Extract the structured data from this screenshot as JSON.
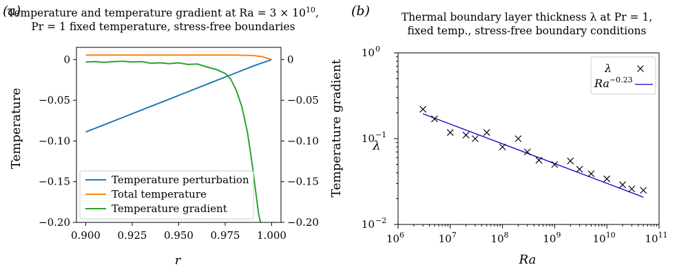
{
  "chart_data": [
    {
      "panel_label": "(a)",
      "type": "line",
      "title_line1": "Temperature and temperature gradient at Ra = 3 × 10",
      "title_line1_sup": "10",
      "title_line1_end": ",",
      "title_line2": "Pr = 1 fixed temperature, stress-free boundaries",
      "xlabel": "r",
      "ylabel": "Temperature",
      "y2label": "Temperature gradient",
      "xlim": [
        0.895,
        1.005
      ],
      "ylim": [
        -0.2,
        0.015
      ],
      "y2lim": [
        -0.2,
        0.015
      ],
      "xticks": [
        "0.900",
        "0.925",
        "0.950",
        "0.975",
        "1.000"
      ],
      "yticks": [
        "0",
        "−0.05",
        "−0.10",
        "−0.15",
        "−0.20"
      ],
      "y2ticks": [
        "0",
        "−0.05",
        "−0.10",
        "−0.15",
        "−0.20"
      ],
      "legend_position": "lower-left",
      "series": [
        {
          "name": "Temperature perturbation",
          "color": "#1f77b4",
          "axis": "left",
          "x": [
            0.9,
            0.91,
            0.92,
            0.93,
            0.94,
            0.95,
            0.96,
            0.97,
            0.98,
            0.99,
            0.995,
            1.0
          ],
          "y": [
            -0.089,
            -0.08,
            -0.071,
            -0.062,
            -0.053,
            -0.044,
            -0.035,
            -0.026,
            -0.017,
            -0.008,
            -0.004,
            0.0
          ]
        },
        {
          "name": "Total temperature",
          "color": "#ff7f0e",
          "axis": "left",
          "x": [
            0.9,
            0.95,
            0.98,
            0.99,
            0.995,
            1.0
          ],
          "y": [
            0.0055,
            0.0055,
            0.0055,
            0.005,
            0.0035,
            0.0
          ]
        },
        {
          "name": "Temperature gradient",
          "color": "#2ca02c",
          "axis": "right",
          "x": [
            0.9,
            0.905,
            0.91,
            0.915,
            0.92,
            0.925,
            0.93,
            0.935,
            0.94,
            0.945,
            0.95,
            0.955,
            0.96,
            0.965,
            0.97,
            0.975,
            0.978,
            0.981,
            0.984,
            0.987,
            0.989,
            0.991,
            0.993,
            0.994
          ],
          "y": [
            -0.003,
            -0.0025,
            -0.0035,
            -0.0025,
            -0.002,
            -0.003,
            -0.0025,
            -0.0045,
            -0.004,
            -0.005,
            -0.004,
            -0.006,
            -0.0055,
            -0.009,
            -0.012,
            -0.017,
            -0.024,
            -0.038,
            -0.058,
            -0.09,
            -0.12,
            -0.155,
            -0.19,
            -0.2
          ]
        }
      ]
    },
    {
      "panel_label": "(b)",
      "type": "scatter",
      "title_line1": "Thermal boundary layer thickness λ at Pr = 1,",
      "title_line2": "fixed temp., stress-free boundary conditions",
      "xlabel": "Ra",
      "ylabel": "λ",
      "x_scale": "log",
      "y_scale": "log",
      "xlim": [
        1000000,
        100000000000
      ],
      "ylim": [
        0.01,
        1
      ],
      "xticks": [
        {
          "base": "10",
          "exp": "6"
        },
        {
          "base": "10",
          "exp": "7"
        },
        {
          "base": "10",
          "exp": "8"
        },
        {
          "base": "10",
          "exp": "9"
        },
        {
          "base": "10",
          "exp": "10"
        },
        {
          "base": "10",
          "exp": "11"
        }
      ],
      "yticks": [
        {
          "base": "10",
          "exp": "−2"
        },
        {
          "base": "10",
          "exp": "−1"
        },
        {
          "base": "10",
          "exp": "0"
        }
      ],
      "legend_position": "top-right",
      "series": [
        {
          "name": "λ",
          "marker": "×",
          "color": "#000000",
          "x": [
            3000000,
            5000000,
            10000000,
            20000000,
            30000000,
            50000000,
            100000000,
            200000000,
            300000000,
            500000000,
            1000000000,
            2000000000,
            3000000000,
            5000000000,
            10000000000,
            20000000000,
            30000000000,
            50000000000
          ],
          "y": [
            0.22,
            0.17,
            0.118,
            0.11,
            0.1,
            0.118,
            0.08,
            0.1,
            0.07,
            0.056,
            0.05,
            0.055,
            0.044,
            0.039,
            0.034,
            0.029,
            0.026,
            0.025
          ]
        },
        {
          "name": "Ra",
          "name_sup": "−0.23",
          "color": "#0000cc",
          "type": "line",
          "x": [
            3000000,
            50000000000
          ],
          "y": [
            0.195,
            0.0208
          ]
        }
      ]
    }
  ]
}
